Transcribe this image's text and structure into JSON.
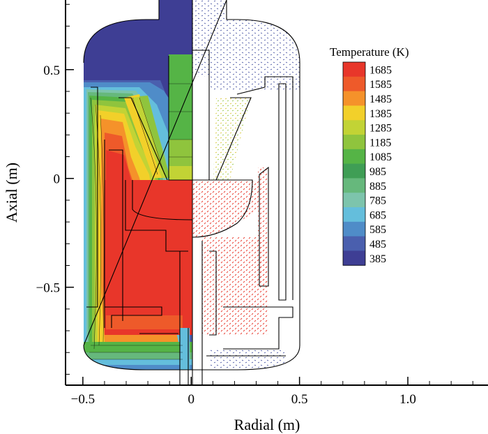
{
  "chart_data": {
    "type": "heatmap",
    "xlabel": "Radial (m)",
    "ylabel": "Axial (m)",
    "xlim": [
      -0.58,
      1.37
    ],
    "ylim": [
      -0.95,
      0.82
    ],
    "x_ticks": [
      {
        "value": -0.5,
        "label": "−0.5"
      },
      {
        "value": 0,
        "label": "0"
      },
      {
        "value": 0.5,
        "label": "0.5"
      },
      {
        "value": 1.0,
        "label": "1.0"
      }
    ],
    "y_ticks": [
      {
        "value": 0.5,
        "label": "0.5"
      },
      {
        "value": 0,
        "label": "0"
      },
      {
        "value": -0.5,
        "label": "−0.5"
      }
    ],
    "colorbar": {
      "title": "Temperature (K)",
      "levels": [
        {
          "value": 1685,
          "label": "1685",
          "color": "#e8362a"
        },
        {
          "value": 1585,
          "label": "1585",
          "color": "#ee5a2a"
        },
        {
          "value": 1485,
          "label": "1485",
          "color": "#f5922a"
        },
        {
          "value": 1385,
          "label": "1385",
          "color": "#f2d02a"
        },
        {
          "value": 1285,
          "label": "1285",
          "color": "#c2d335"
        },
        {
          "value": 1185,
          "label": "1185",
          "color": "#8fc43d"
        },
        {
          "value": 1085,
          "label": "1085",
          "color": "#55b446"
        },
        {
          "value": 985,
          "label": "985",
          "color": "#3f9e55"
        },
        {
          "value": 885,
          "label": "885",
          "color": "#66b87c"
        },
        {
          "value": 785,
          "label": "785",
          "color": "#7dc4ac"
        },
        {
          "value": 685,
          "label": "685",
          "color": "#64bedc"
        },
        {
          "value": 585,
          "label": "585",
          "color": "#4f8cc8"
        },
        {
          "value": 485,
          "label": "485",
          "color": "#4a5fae"
        },
        {
          "value": 385,
          "label": "385",
          "color": "#3e3e94"
        }
      ]
    },
    "left_half": "temperature contours",
    "right_half": "velocity vectors"
  }
}
